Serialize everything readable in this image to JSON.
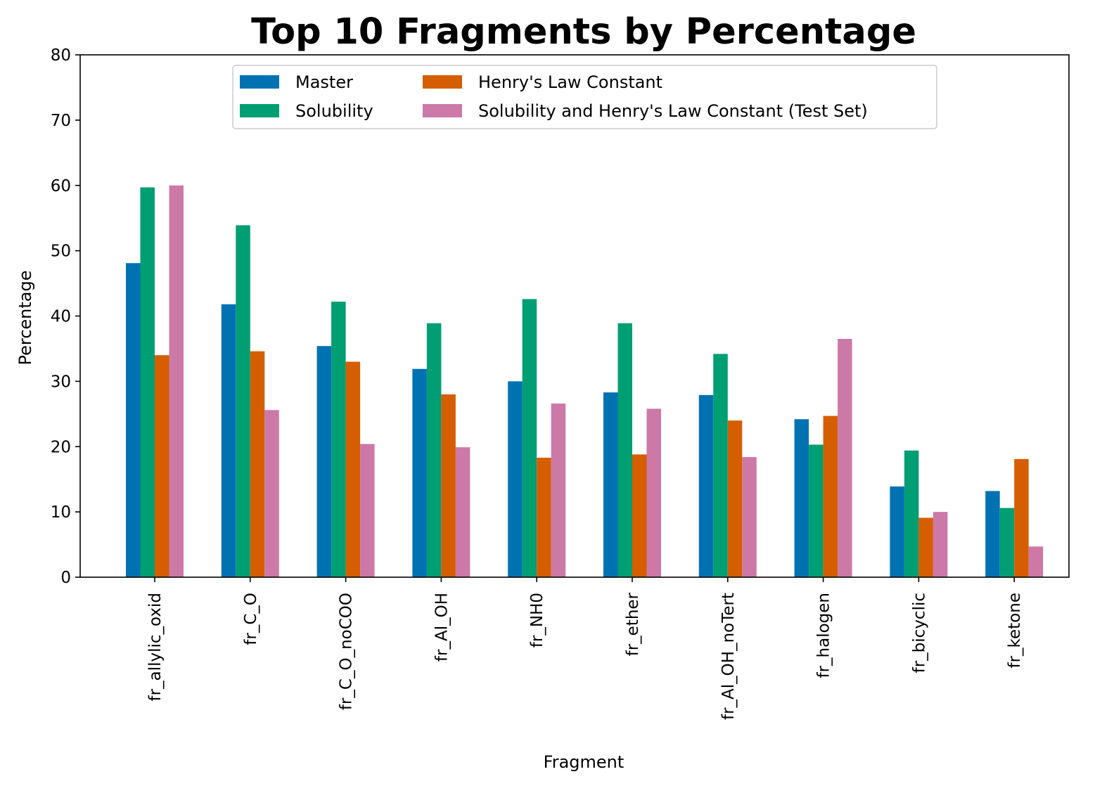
{
  "chart_data": {
    "type": "bar",
    "title": "Top 10 Fragments by Percentage",
    "xlabel": "Fragment",
    "ylabel": "Percentage",
    "ylim": [
      0,
      80
    ],
    "yticks": [
      0,
      10,
      20,
      30,
      40,
      50,
      60,
      70,
      80
    ],
    "grid": false,
    "legend_position": "top-center",
    "categories": [
      "fr_allylic_oxid",
      "fr_C_O",
      "fr_C_O_noCOO",
      "fr_Al_OH",
      "fr_NH0",
      "fr_ether",
      "fr_Al_OH_noTert",
      "fr_halogen",
      "fr_bicyclic",
      "fr_ketone"
    ],
    "series": [
      {
        "name": "Master",
        "color": "#0072b2",
        "values": [
          48.1,
          41.8,
          35.4,
          31.9,
          30.0,
          28.3,
          27.9,
          24.2,
          13.9,
          13.2
        ]
      },
      {
        "name": "Solubility",
        "color": "#009e73",
        "values": [
          59.7,
          53.9,
          42.2,
          38.9,
          42.6,
          38.9,
          34.2,
          20.3,
          19.4,
          10.6
        ]
      },
      {
        "name": "Henry's Law Constant",
        "color": "#d55e00",
        "values": [
          34.0,
          34.6,
          33.0,
          28.0,
          18.3,
          18.8,
          24.0,
          24.7,
          9.1,
          18.1
        ]
      },
      {
        "name": "Solubility and Henry's Law Constant (Test Set)",
        "color": "#cc79a7",
        "values": [
          60.0,
          25.6,
          20.4,
          19.9,
          26.6,
          25.8,
          18.4,
          36.5,
          10.0,
          4.7
        ]
      }
    ]
  }
}
